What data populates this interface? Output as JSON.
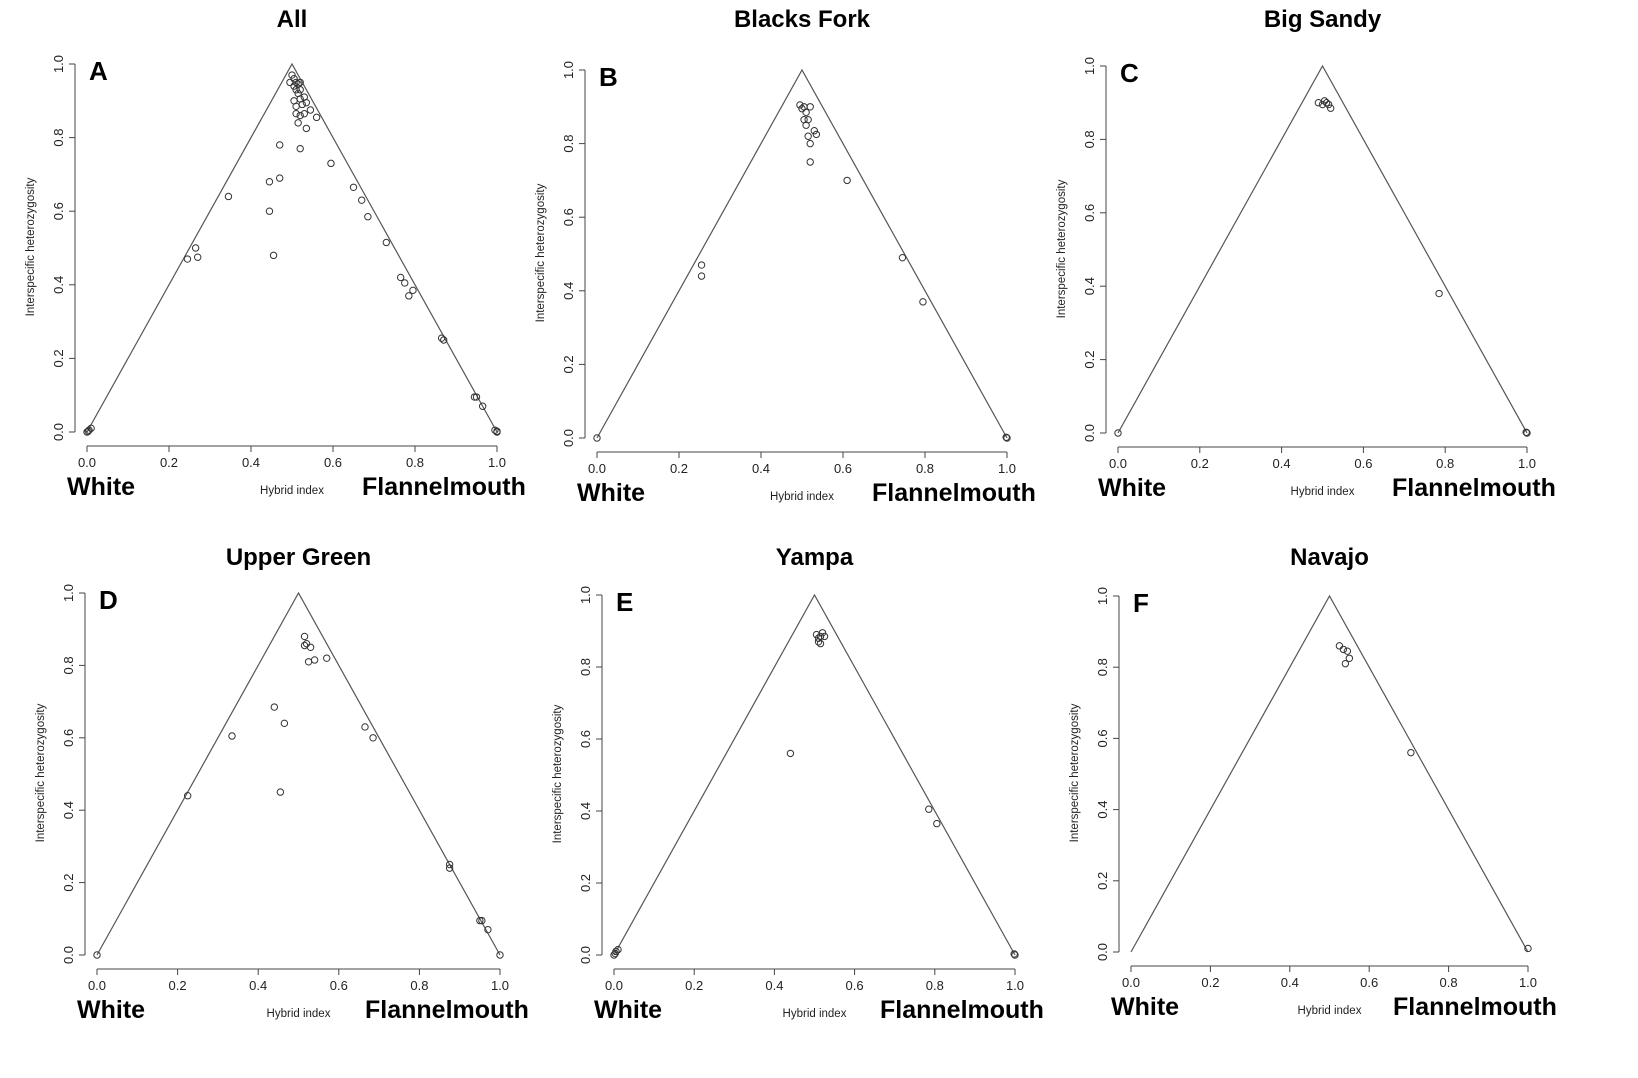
{
  "chart_data": [
    {
      "type": "scatter",
      "panel_letter": "A",
      "title": "All",
      "xlabel": "Hybrid index",
      "ylabel": "Interspecific heterozygosity",
      "left_label": "White",
      "right_label": "Flannelmouth",
      "xlim": [
        0,
        1
      ],
      "ylim": [
        0,
        1
      ],
      "xticks": [
        "0.0",
        "0.2",
        "0.4",
        "0.6",
        "0.8",
        "1.0"
      ],
      "yticks": [
        "0.0",
        "0.2",
        "0.4",
        "0.6",
        "0.8",
        "1.0"
      ],
      "triangle": [
        [
          0,
          0
        ],
        [
          0.5,
          1
        ],
        [
          1,
          0
        ]
      ],
      "points": [
        [
          0.0,
          0.0
        ],
        [
          0.005,
          0.005
        ],
        [
          0.01,
          0.01
        ],
        [
          0.003,
          0.002
        ],
        [
          0.245,
          0.47
        ],
        [
          0.265,
          0.5
        ],
        [
          0.27,
          0.475
        ],
        [
          0.345,
          0.64
        ],
        [
          0.445,
          0.68
        ],
        [
          0.445,
          0.6
        ],
        [
          0.455,
          0.48
        ],
        [
          0.47,
          0.69
        ],
        [
          0.47,
          0.78
        ],
        [
          0.495,
          0.95
        ],
        [
          0.5,
          0.97
        ],
        [
          0.505,
          0.96
        ],
        [
          0.51,
          0.95
        ],
        [
          0.505,
          0.94
        ],
        [
          0.515,
          0.945
        ],
        [
          0.52,
          0.95
        ],
        [
          0.51,
          0.93
        ],
        [
          0.52,
          0.93
        ],
        [
          0.515,
          0.92
        ],
        [
          0.505,
          0.9
        ],
        [
          0.51,
          0.885
        ],
        [
          0.52,
          0.905
        ],
        [
          0.525,
          0.89
        ],
        [
          0.53,
          0.91
        ],
        [
          0.535,
          0.895
        ],
        [
          0.51,
          0.865
        ],
        [
          0.52,
          0.86
        ],
        [
          0.53,
          0.865
        ],
        [
          0.545,
          0.875
        ],
        [
          0.515,
          0.84
        ],
        [
          0.535,
          0.825
        ],
        [
          0.52,
          0.77
        ],
        [
          0.56,
          0.855
        ],
        [
          0.595,
          0.73
        ],
        [
          0.65,
          0.665
        ],
        [
          0.67,
          0.63
        ],
        [
          0.685,
          0.585
        ],
        [
          0.73,
          0.515
        ],
        [
          0.765,
          0.42
        ],
        [
          0.775,
          0.405
        ],
        [
          0.785,
          0.37
        ],
        [
          0.795,
          0.385
        ],
        [
          0.865,
          0.255
        ],
        [
          0.87,
          0.25
        ],
        [
          0.945,
          0.095
        ],
        [
          0.95,
          0.095
        ],
        [
          0.965,
          0.07
        ],
        [
          0.995,
          0.005
        ],
        [
          1.0,
          0.0
        ],
        [
          1.0,
          0.002
        ]
      ]
    },
    {
      "type": "scatter",
      "panel_letter": "B",
      "title": "Blacks Fork",
      "xlabel": "Hybrid index",
      "ylabel": "Interspecific heterozygosity",
      "left_label": "White",
      "right_label": "Flannelmouth",
      "xlim": [
        0,
        1
      ],
      "ylim": [
        0,
        1
      ],
      "xticks": [
        "0.0",
        "0.2",
        "0.4",
        "0.6",
        "0.8",
        "1.0"
      ],
      "yticks": [
        "0.0",
        "0.2",
        "0.4",
        "0.6",
        "0.8",
        "1.0"
      ],
      "triangle": [
        [
          0,
          0
        ],
        [
          0.5,
          1
        ],
        [
          1,
          0
        ]
      ],
      "points": [
        [
          0.0,
          0.0
        ],
        [
          0.255,
          0.47
        ],
        [
          0.255,
          0.44
        ],
        [
          0.495,
          0.905
        ],
        [
          0.5,
          0.895
        ],
        [
          0.505,
          0.9
        ],
        [
          0.51,
          0.885
        ],
        [
          0.52,
          0.9
        ],
        [
          0.505,
          0.865
        ],
        [
          0.515,
          0.865
        ],
        [
          0.51,
          0.85
        ],
        [
          0.53,
          0.835
        ],
        [
          0.535,
          0.825
        ],
        [
          0.515,
          0.82
        ],
        [
          0.52,
          0.8
        ],
        [
          0.52,
          0.75
        ],
        [
          0.61,
          0.7
        ],
        [
          0.745,
          0.49
        ],
        [
          0.795,
          0.37
        ],
        [
          1.0,
          0.0
        ],
        [
          0.998,
          0.002
        ]
      ]
    },
    {
      "type": "scatter",
      "panel_letter": "C",
      "title": "Big Sandy",
      "xlabel": "Hybrid index",
      "ylabel": "Interspecific heterozygosity",
      "left_label": "White",
      "right_label": "Flannelmouth",
      "xlim": [
        0,
        1
      ],
      "ylim": [
        0,
        1
      ],
      "xticks": [
        "0.0",
        "0.2",
        "0.4",
        "0.6",
        "0.8",
        "1.0"
      ],
      "yticks": [
        "0.0",
        "0.2",
        "0.4",
        "0.6",
        "0.8",
        "1.0"
      ],
      "triangle": [
        [
          0,
          0
        ],
        [
          0.5,
          1
        ],
        [
          1,
          0
        ]
      ],
      "points": [
        [
          0.0,
          0.0
        ],
        [
          0.49,
          0.9
        ],
        [
          0.5,
          0.895
        ],
        [
          0.505,
          0.905
        ],
        [
          0.51,
          0.9
        ],
        [
          0.515,
          0.895
        ],
        [
          0.52,
          0.885
        ],
        [
          0.785,
          0.38
        ],
        [
          1.0,
          0.0
        ],
        [
          0.998,
          0.002
        ]
      ]
    },
    {
      "type": "scatter",
      "panel_letter": "D",
      "title": "Upper Green",
      "xlabel": "Hybrid index",
      "ylabel": "Interspecific heterozygosity",
      "left_label": "White",
      "right_label": "Flannelmouth",
      "xlim": [
        0,
        1
      ],
      "ylim": [
        0,
        1
      ],
      "xticks": [
        "0.0",
        "0.2",
        "0.4",
        "0.6",
        "0.8",
        "1.0"
      ],
      "yticks": [
        "0.0",
        "0.2",
        "0.4",
        "0.6",
        "0.8",
        "1.0"
      ],
      "triangle": [
        [
          0,
          0
        ],
        [
          0.5,
          1
        ],
        [
          1,
          0
        ]
      ],
      "points": [
        [
          0.0,
          0.0
        ],
        [
          0.225,
          0.44
        ],
        [
          0.335,
          0.605
        ],
        [
          0.44,
          0.685
        ],
        [
          0.455,
          0.45
        ],
        [
          0.465,
          0.64
        ],
        [
          0.515,
          0.88
        ],
        [
          0.515,
          0.855
        ],
        [
          0.52,
          0.86
        ],
        [
          0.53,
          0.85
        ],
        [
          0.525,
          0.81
        ],
        [
          0.54,
          0.815
        ],
        [
          0.57,
          0.82
        ],
        [
          0.665,
          0.63
        ],
        [
          0.685,
          0.6
        ],
        [
          0.875,
          0.25
        ],
        [
          0.875,
          0.24
        ],
        [
          0.95,
          0.095
        ],
        [
          0.955,
          0.095
        ],
        [
          0.97,
          0.07
        ],
        [
          1.0,
          0.0
        ]
      ]
    },
    {
      "type": "scatter",
      "panel_letter": "E",
      "title": "Yampa",
      "xlabel": "Hybrid index",
      "ylabel": "Interspecific heterozygosity",
      "left_label": "White",
      "right_label": "Flannelmouth",
      "xlim": [
        0,
        1
      ],
      "ylim": [
        0,
        1
      ],
      "xticks": [
        "0.0",
        "0.2",
        "0.4",
        "0.6",
        "0.8",
        "1.0"
      ],
      "yticks": [
        "0.0",
        "0.2",
        "0.4",
        "0.6",
        "0.8",
        "1.0"
      ],
      "triangle": [
        [
          0,
          0
        ],
        [
          0.5,
          1
        ],
        [
          1,
          0
        ]
      ],
      "points": [
        [
          0.0,
          0.0
        ],
        [
          0.005,
          0.01
        ],
        [
          0.01,
          0.015
        ],
        [
          0.003,
          0.004
        ],
        [
          0.44,
          0.56
        ],
        [
          0.505,
          0.89
        ],
        [
          0.51,
          0.88
        ],
        [
          0.515,
          0.885
        ],
        [
          0.52,
          0.895
        ],
        [
          0.525,
          0.885
        ],
        [
          0.51,
          0.87
        ],
        [
          0.515,
          0.865
        ],
        [
          0.785,
          0.405
        ],
        [
          0.805,
          0.365
        ],
        [
          1.0,
          0.0
        ],
        [
          0.998,
          0.003
        ]
      ]
    },
    {
      "type": "scatter",
      "panel_letter": "F",
      "title": "Navajo",
      "xlabel": "Hybrid index",
      "ylabel": "Interspecific heterozygosity",
      "left_label": "White",
      "right_label": "Flannelmouth",
      "xlim": [
        0,
        1
      ],
      "ylim": [
        0,
        1
      ],
      "xticks": [
        "0.0",
        "0.2",
        "0.4",
        "0.6",
        "0.8",
        "1.0"
      ],
      "yticks": [
        "0.0",
        "0.2",
        "0.4",
        "0.6",
        "0.8",
        "1.0"
      ],
      "triangle": [
        [
          0,
          0
        ],
        [
          0.5,
          1
        ],
        [
          1,
          0
        ]
      ],
      "points": [
        [
          0.525,
          0.86
        ],
        [
          0.535,
          0.85
        ],
        [
          0.545,
          0.845
        ],
        [
          0.55,
          0.825
        ],
        [
          0.54,
          0.81
        ],
        [
          0.705,
          0.56
        ],
        [
          1.0,
          0.01
        ]
      ]
    }
  ]
}
